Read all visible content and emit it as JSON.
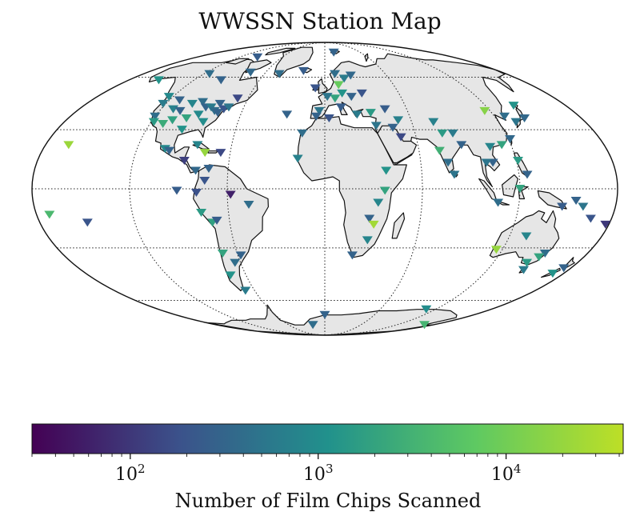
{
  "chart_data": {
    "type": "scatter",
    "projection": "mollweide",
    "title": "WWSSN Station Map",
    "colorbar": {
      "label": "Number of Film Chips Scanned",
      "scale": "log",
      "range": [
        30,
        42000
      ],
      "tick_labels": [
        {
          "value": 100,
          "base": "10",
          "exp": "2"
        },
        {
          "value": 1000,
          "base": "10",
          "exp": "3"
        },
        {
          "value": 10000,
          "base": "10",
          "exp": "4"
        }
      ],
      "colormap": [
        "#440154",
        "#3b528b",
        "#21918c",
        "#5ec962",
        "#bddf26"
      ]
    },
    "gridlines": {
      "lon_step_deg": 60,
      "lat_step_deg": 30
    },
    "marker": "triangle-down",
    "stations": [
      {
        "lon": -152,
        "lat": 58,
        "count": 1200
      },
      {
        "lon": -165,
        "lat": 22,
        "count": 22000
      },
      {
        "lon": -172,
        "lat": -13,
        "count": 4000
      },
      {
        "lon": -150,
        "lat": -17,
        "count": 200
      },
      {
        "lon": -123,
        "lat": 48,
        "count": 900
      },
      {
        "lon": -122,
        "lat": 44,
        "count": 600
      },
      {
        "lon": -120,
        "lat": 37,
        "count": 400
      },
      {
        "lon": -118,
        "lat": 34,
        "count": 1500
      },
      {
        "lon": -112,
        "lat": 46,
        "count": 300
      },
      {
        "lon": -111,
        "lat": 41,
        "count": 700
      },
      {
        "lon": -111,
        "lat": 33,
        "count": 2500
      },
      {
        "lon": -106,
        "lat": 35,
        "count": 1800
      },
      {
        "lon": -105,
        "lat": 40,
        "count": 300
      },
      {
        "lon": -100,
        "lat": 44,
        "count": 800
      },
      {
        "lon": -97,
        "lat": 36,
        "count": 2000
      },
      {
        "lon": -96,
        "lat": 30,
        "count": 1200
      },
      {
        "lon": -93,
        "lat": 45,
        "count": 400
      },
      {
        "lon": -90,
        "lat": 38,
        "count": 900
      },
      {
        "lon": -88,
        "lat": 42,
        "count": 300
      },
      {
        "lon": -84,
        "lat": 42,
        "count": 600
      },
      {
        "lon": -84,
        "lat": 34,
        "count": 1000
      },
      {
        "lon": -80,
        "lat": 40,
        "count": 400
      },
      {
        "lon": -79,
        "lat": 44,
        "count": 300
      },
      {
        "lon": -77,
        "lat": 39,
        "count": 300
      },
      {
        "lon": -74,
        "lat": 41,
        "count": 200
      },
      {
        "lon": -71,
        "lat": 42,
        "count": 500
      },
      {
        "lon": -68,
        "lat": 47,
        "count": 150
      },
      {
        "lon": -94,
        "lat": 74,
        "count": 250
      },
      {
        "lon": -114,
        "lat": 62,
        "count": 400
      },
      {
        "lon": -95,
        "lat": 58,
        "count": 300
      },
      {
        "lon": -75,
        "lat": 63,
        "count": 350
      },
      {
        "lon": -102,
        "lat": 20,
        "count": 900
      },
      {
        "lon": -99,
        "lat": 19,
        "count": 300
      },
      {
        "lon": -82,
        "lat": 22,
        "count": 800
      },
      {
        "lon": -88,
        "lat": 14,
        "count": 120
      },
      {
        "lon": -76,
        "lat": 18,
        "count": 20000
      },
      {
        "lon": -80,
        "lat": 9,
        "count": 350
      },
      {
        "lon": -66,
        "lat": 18,
        "count": 150
      },
      {
        "lon": -72,
        "lat": 10,
        "count": 300
      },
      {
        "lon": -74,
        "lat": 4,
        "count": 200
      },
      {
        "lon": -91,
        "lat": -1,
        "count": 250
      },
      {
        "lon": -79,
        "lat": -2,
        "count": 180
      },
      {
        "lon": -77,
        "lat": -12,
        "count": 1500
      },
      {
        "lon": -71,
        "lat": -17,
        "count": 1800
      },
      {
        "lon": -68,
        "lat": -16,
        "count": 250
      },
      {
        "lon": -58,
        "lat": -3,
        "count": 60
      },
      {
        "lon": -47,
        "lat": -8,
        "count": 400
      },
      {
        "lon": -70,
        "lat": -33,
        "count": 2000
      },
      {
        "lon": -58,
        "lat": -34,
        "count": 300
      },
      {
        "lon": -64,
        "lat": -38,
        "count": 400
      },
      {
        "lon": -72,
        "lat": -45,
        "count": 1200
      },
      {
        "lon": -68,
        "lat": -54,
        "count": 600
      },
      {
        "lon": -45,
        "lat": 62,
        "count": 400
      },
      {
        "lon": -22,
        "lat": 64,
        "count": 250
      },
      {
        "lon": -27,
        "lat": 38,
        "count": 300
      },
      {
        "lon": -15,
        "lat": 28,
        "count": 400
      },
      {
        "lon": -17,
        "lat": 15,
        "count": 700
      },
      {
        "lon": -8,
        "lat": 53,
        "count": 200
      },
      {
        "lon": -4,
        "lat": 40,
        "count": 500
      },
      {
        "lon": -6,
        "lat": 37,
        "count": 300
      },
      {
        "lon": 10,
        "lat": 62,
        "count": 400
      },
      {
        "lon": 18,
        "lat": 59,
        "count": 600
      },
      {
        "lon": 25,
        "lat": 61,
        "count": 350
      },
      {
        "lon": 15,
        "lat": 78,
        "count": 300
      },
      {
        "lon": 12,
        "lat": 55,
        "count": 8000
      },
      {
        "lon": 14,
        "lat": 50,
        "count": 1200
      },
      {
        "lon": 8,
        "lat": 47,
        "count": 2000
      },
      {
        "lon": 2,
        "lat": 48,
        "count": 500
      },
      {
        "lon": 21,
        "lat": 48,
        "count": 300
      },
      {
        "lon": 12,
        "lat": 42,
        "count": 250
      },
      {
        "lon": 23,
        "lat": 38,
        "count": 600
      },
      {
        "lon": 33,
        "lat": 39,
        "count": 1500
      },
      {
        "lon": 30,
        "lat": 50,
        "count": 200
      },
      {
        "lon": 35,
        "lat": 32,
        "count": 500
      },
      {
        "lon": 44,
        "lat": 41,
        "count": 250
      },
      {
        "lon": 51,
        "lat": 35,
        "count": 700
      },
      {
        "lon": 46,
        "lat": 31,
        "count": 300
      },
      {
        "lon": 50,
        "lat": 26,
        "count": 150
      },
      {
        "lon": 38,
        "lat": 9,
        "count": 1200
      },
      {
        "lon": 37,
        "lat": -1,
        "count": 2000
      },
      {
        "lon": 33,
        "lat": -7,
        "count": 800
      },
      {
        "lon": 28,
        "lat": -15,
        "count": 300
      },
      {
        "lon": 31,
        "lat": -18,
        "count": 25000
      },
      {
        "lon": 28,
        "lat": -26,
        "count": 800
      },
      {
        "lon": 19,
        "lat": -34,
        "count": 300
      },
      {
        "lon": 3,
        "lat": 36,
        "count": 200
      },
      {
        "lon": 75,
        "lat": 34,
        "count": 700
      },
      {
        "lon": 78,
        "lat": 28,
        "count": 1500
      },
      {
        "lon": 73,
        "lat": 19,
        "count": 3000
      },
      {
        "lon": 77,
        "lat": 13,
        "count": 400
      },
      {
        "lon": 80,
        "lat": 7,
        "count": 500
      },
      {
        "lon": 88,
        "lat": 22,
        "count": 300
      },
      {
        "lon": 85,
        "lat": 28,
        "count": 600
      },
      {
        "lon": 105,
        "lat": 13,
        "count": 300
      },
      {
        "lon": 101,
        "lat": 13,
        "count": 500
      },
      {
        "lon": 106,
        "lat": 21,
        "count": 800
      },
      {
        "lon": 114,
        "lat": 22,
        "count": 2000
      },
      {
        "lon": 121,
        "lat": 25,
        "count": 350
      },
      {
        "lon": 127,
        "lat": 37,
        "count": 400
      },
      {
        "lon": 116,
        "lat": 40,
        "count": 15000
      },
      {
        "lon": 140,
        "lat": 36,
        "count": 350
      },
      {
        "lon": 141,
        "lat": 43,
        "count": 1200
      },
      {
        "lon": 132,
        "lat": 34,
        "count": 500
      },
      {
        "lon": 121,
        "lat": 14,
        "count": 1500
      },
      {
        "lon": 125,
        "lat": 7,
        "count": 300
      },
      {
        "lon": 107,
        "lat": -7,
        "count": 400
      },
      {
        "lon": 120,
        "lat": 0,
        "count": 2000
      },
      {
        "lon": 147,
        "lat": -9,
        "count": 250
      },
      {
        "lon": 155,
        "lat": -6,
        "count": 300
      },
      {
        "lon": 160,
        "lat": -9,
        "count": 500
      },
      {
        "lon": 167,
        "lat": -15,
        "count": 200
      },
      {
        "lon": 178,
        "lat": -18,
        "count": 100
      },
      {
        "lon": 116,
        "lat": -31,
        "count": 20000
      },
      {
        "lon": 131,
        "lat": -24,
        "count": 800
      },
      {
        "lon": 151,
        "lat": -33,
        "count": 400
      },
      {
        "lon": 144,
        "lat": -38,
        "count": 1500
      },
      {
        "lon": 147,
        "lat": -42,
        "count": 600
      },
      {
        "lon": 149,
        "lat": -35,
        "count": 2000
      },
      {
        "lon": 175,
        "lat": -41,
        "count": 300
      },
      {
        "lon": 172,
        "lat": -44,
        "count": 1200
      },
      {
        "lon": 110,
        "lat": -66,
        "count": 1000
      },
      {
        "lon": 167,
        "lat": -78,
        "count": 3500
      },
      {
        "lon": 0,
        "lat": -70,
        "count": 300
      },
      {
        "lon": -20,
        "lat": -78,
        "count": 400
      }
    ]
  }
}
